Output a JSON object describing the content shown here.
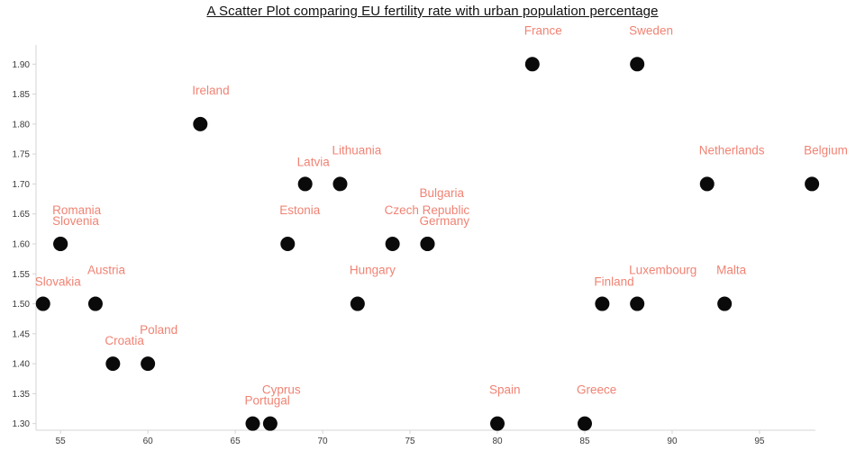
{
  "title": "A Scatter Plot comparing EU fertility rate with urban population percentage",
  "chart_data": {
    "type": "scatter",
    "title": "A Scatter Plot comparing EU fertility rate with urban population percentage",
    "xlabel": "",
    "ylabel": "",
    "grid": false,
    "legend": false,
    "xlim": [
      53.6,
      98.2
    ],
    "ylim": [
      1.289,
      1.932
    ],
    "x_ticks": [
      "55",
      "60",
      "65",
      "70",
      "75",
      "80",
      "85",
      "90",
      "95"
    ],
    "y_ticks": [
      "1.30",
      "1.35",
      "1.40",
      "1.45",
      "1.50",
      "1.55",
      "1.60",
      "1.65",
      "1.70",
      "1.75",
      "1.80",
      "1.85",
      "1.90"
    ],
    "point_color": "#0a0a0a",
    "label_color": "#f08374",
    "axis_color": "#d4d4d4",
    "tick_text_color": "#3a3a3a",
    "points": [
      {
        "country": "Slovakia",
        "x": 54,
        "y": 1.5,
        "label_dy": -25
      },
      {
        "country": "Austria",
        "x": 57,
        "y": 1.5,
        "label_dy": -38
      },
      {
        "country": "Romania",
        "x": 55,
        "y": 1.6,
        "label_dy": -38
      },
      {
        "country": "Slovenia",
        "x": 55,
        "y": 1.6,
        "label_dy": -26
      },
      {
        "country": "Croatia",
        "x": 58,
        "y": 1.4,
        "label_dy": -26
      },
      {
        "country": "Poland",
        "x": 60,
        "y": 1.4,
        "label_dy": -38
      },
      {
        "country": "Ireland",
        "x": 63,
        "y": 1.8,
        "label_dy": -38
      },
      {
        "country": "Portugal",
        "x": 66,
        "y": 1.3,
        "label_dy": -26
      },
      {
        "country": "Cyprus",
        "x": 67,
        "y": 1.3,
        "label_dy": -38
      },
      {
        "country": "Estonia",
        "x": 68,
        "y": 1.6,
        "label_dy": -38
      },
      {
        "country": "Latvia",
        "x": 69,
        "y": 1.7,
        "label_dy": -25
      },
      {
        "country": "Lithuania",
        "x": 71,
        "y": 1.7,
        "label_dy": -38
      },
      {
        "country": "Hungary",
        "x": 72,
        "y": 1.5,
        "label_dy": -38
      },
      {
        "country": "Czech Republic",
        "x": 74,
        "y": 1.6,
        "label_dy": -38
      },
      {
        "country": "Bulgaria",
        "x": 76,
        "y": 1.6,
        "label_dy": -57
      },
      {
        "country": "Germany",
        "x": 76,
        "y": 1.6,
        "label_dy": -26
      },
      {
        "country": "Spain",
        "x": 80,
        "y": 1.3,
        "label_dy": -38
      },
      {
        "country": "France",
        "x": 82,
        "y": 1.9,
        "label_dy": -38
      },
      {
        "country": "Greece",
        "x": 85,
        "y": 1.3,
        "label_dy": -38
      },
      {
        "country": "Finland",
        "x": 86,
        "y": 1.5,
        "label_dy": -25
      },
      {
        "country": "Luxembourg",
        "x": 88,
        "y": 1.5,
        "label_dy": -38
      },
      {
        "country": "Sweden",
        "x": 88,
        "y": 1.9,
        "label_dy": -38
      },
      {
        "country": "Netherlands",
        "x": 92,
        "y": 1.7,
        "label_dy": -38
      },
      {
        "country": "Malta",
        "x": 93,
        "y": 1.5,
        "label_dy": -38
      },
      {
        "country": "Belgium",
        "x": 98,
        "y": 1.7,
        "label_dy": -38
      }
    ]
  }
}
